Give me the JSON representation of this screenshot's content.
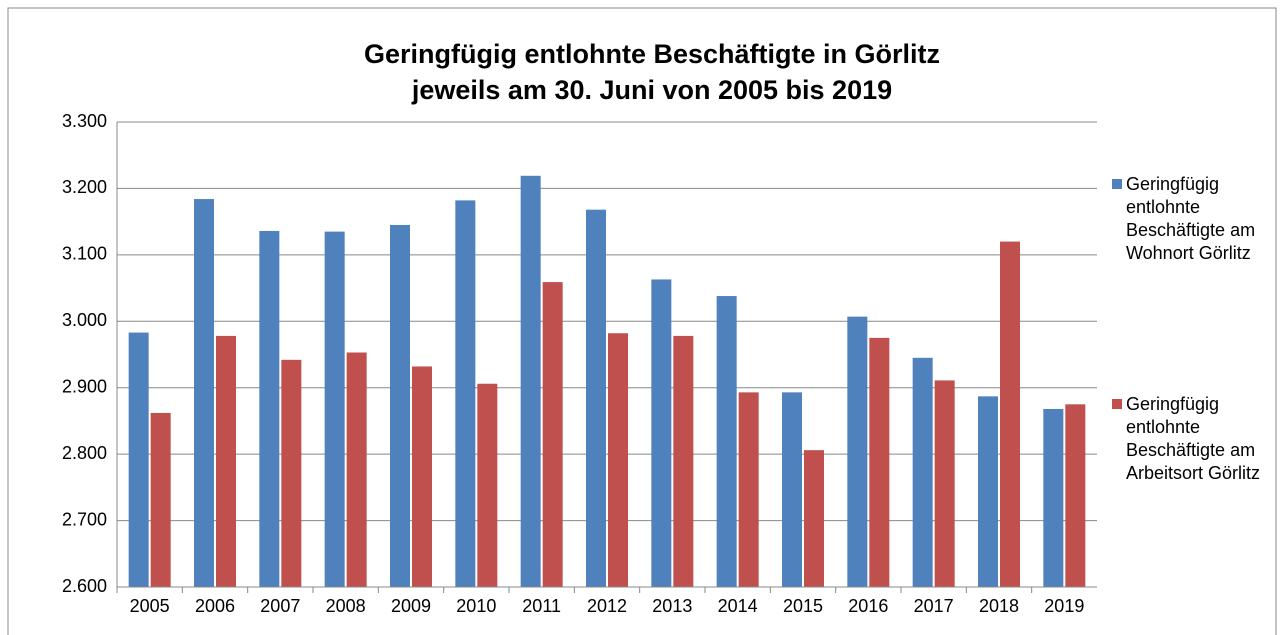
{
  "chart_data": {
    "type": "bar",
    "title": [
      "Geringfügig entlohnte Beschäftigte in Görlitz",
      "jeweils am 30. Juni von 2005 bis 2019"
    ],
    "categories": [
      "2005",
      "2006",
      "2007",
      "2008",
      "2009",
      "2010",
      "2011",
      "2012",
      "2013",
      "2014",
      "2015",
      "2016",
      "2017",
      "2018",
      "2019"
    ],
    "series": [
      {
        "name": "Geringfügig entlohnte Beschäftigte am Wohnort Görlitz",
        "color": "#4f81bd",
        "values": [
          2983,
          3184,
          3136,
          3135,
          3145,
          3182,
          3219,
          3168,
          3063,
          3038,
          2893,
          3007,
          2945,
          2887,
          2868
        ]
      },
      {
        "name": "Geringfügig entlohnte Beschäftigte am Arbeitsort Görlitz",
        "color": "#c0504d",
        "values": [
          2862,
          2978,
          2942,
          2953,
          2932,
          2906,
          3059,
          2982,
          2978,
          2893,
          2806,
          2975,
          2911,
          3120,
          2875
        ]
      }
    ],
    "ylim": [
      2600,
      3300
    ],
    "yticks": [
      {
        "value": 2600,
        "label": "2.600"
      },
      {
        "value": 2700,
        "label": "2.700"
      },
      {
        "value": 2800,
        "label": "2.800"
      },
      {
        "value": 2900,
        "label": "2.900"
      },
      {
        "value": 3000,
        "label": "3.000"
      },
      {
        "value": 3100,
        "label": "3.100"
      },
      {
        "value": 3200,
        "label": "3.200"
      },
      {
        "value": 3300,
        "label": "3.300"
      }
    ],
    "grid": true,
    "legend": "right"
  }
}
